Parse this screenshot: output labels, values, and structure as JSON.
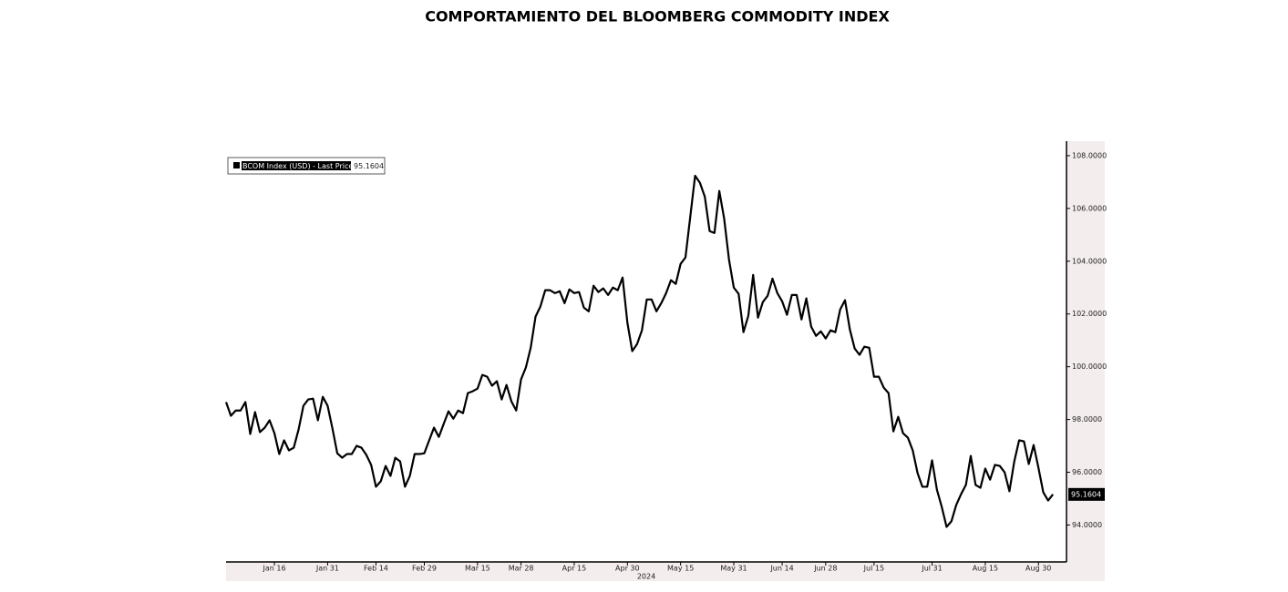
{
  "chart_data": {
    "type": "line",
    "title": "COMPORTAMIENTO DEL BLOOMBERG COMMODITY INDEX",
    "x_axis_label": "2024",
    "legend_label": "BCOM Index (USD) - Last Price",
    "last_price_label": "95.1604",
    "series": [
      {
        "name": "BCOM Index (USD) - Last Price",
        "color": "#000000",
        "values": [
          98.66,
          98.14,
          98.34,
          98.34,
          98.66,
          97.45,
          98.28,
          97.52,
          97.69,
          97.97,
          97.48,
          96.69,
          97.21,
          96.83,
          96.93,
          97.62,
          98.52,
          98.76,
          98.79,
          97.97,
          98.86,
          98.52,
          97.66,
          96.72,
          96.55,
          96.69,
          96.69,
          97.0,
          96.93,
          96.66,
          96.28,
          95.45,
          95.66,
          96.24,
          95.86,
          96.55,
          96.41,
          95.45,
          95.86,
          96.69,
          96.69,
          96.72,
          97.21,
          97.69,
          97.34,
          97.83,
          98.31,
          98.03,
          98.34,
          98.24,
          99.0,
          99.07,
          99.17,
          99.69,
          99.62,
          99.28,
          99.45,
          98.76,
          99.31,
          98.69,
          98.34,
          99.52,
          99.97,
          100.72,
          101.9,
          102.28,
          102.9,
          102.9,
          102.79,
          102.86,
          102.41,
          102.93,
          102.79,
          102.83,
          102.24,
          102.1,
          103.07,
          102.83,
          102.97,
          102.72,
          103.0,
          102.9,
          103.38,
          101.66,
          100.59,
          100.86,
          101.38,
          102.55,
          102.55,
          102.1,
          102.41,
          102.79,
          103.28,
          103.14,
          103.9,
          104.14,
          105.69,
          107.24,
          106.97,
          106.45,
          105.14,
          105.07,
          106.66,
          105.62,
          104.07,
          103.0,
          102.76,
          101.31,
          101.93,
          103.48,
          101.86,
          102.45,
          102.69,
          103.34,
          102.79,
          102.48,
          101.97,
          102.72,
          102.72,
          101.79,
          102.59,
          101.52,
          101.17,
          101.34,
          101.07,
          101.38,
          101.31,
          102.17,
          102.52,
          101.41,
          100.69,
          100.45,
          100.76,
          100.72,
          99.62,
          99.62,
          99.21,
          99.0,
          97.55,
          98.1,
          97.48,
          97.31,
          96.83,
          95.97,
          95.45,
          95.45,
          96.45,
          95.34,
          94.69,
          93.93,
          94.14,
          94.76,
          95.17,
          95.52,
          96.62,
          95.52,
          95.41,
          96.14,
          95.72,
          96.28,
          96.24,
          96.0,
          95.28,
          96.41,
          97.21,
          97.17,
          96.31,
          97.03,
          96.17,
          95.24,
          94.93,
          95.1604
        ]
      }
    ],
    "xlim": [
      0,
      173.8
    ],
    "xticks": [
      {
        "value": 10,
        "label": "Jan 16"
      },
      {
        "value": 21,
        "label": "Jan 31"
      },
      {
        "value": 31,
        "label": "Feb 14"
      },
      {
        "value": 41,
        "label": "Feb 29"
      },
      {
        "value": 52,
        "label": "Mar 15"
      },
      {
        "value": 61,
        "label": "Mar 28"
      },
      {
        "value": 72,
        "label": "Apr 15"
      },
      {
        "value": 83,
        "label": "Apr 30"
      },
      {
        "value": 94,
        "label": "May 15"
      },
      {
        "value": 105,
        "label": "May 31"
      },
      {
        "value": 115,
        "label": "Jun 14"
      },
      {
        "value": 124,
        "label": "Jun 28"
      },
      {
        "value": 134,
        "label": "Jul 15"
      },
      {
        "value": 146,
        "label": "Jul 31"
      },
      {
        "value": 157,
        "label": "Aug 15"
      },
      {
        "value": 168,
        "label": "Aug 30"
      }
    ],
    "ylim": [
      92.6,
      108.55
    ],
    "yticks": [
      {
        "value": 94,
        "label": "94.0000"
      },
      {
        "value": 96,
        "label": "96.0000"
      },
      {
        "value": 98,
        "label": "98.0000"
      },
      {
        "value": 100,
        "label": "100.0000"
      },
      {
        "value": 102,
        "label": "102.0000"
      },
      {
        "value": 104,
        "label": "104.0000"
      },
      {
        "value": 106,
        "label": "106.0000"
      },
      {
        "value": 108,
        "label": "108.0000"
      }
    ],
    "grid": false
  }
}
